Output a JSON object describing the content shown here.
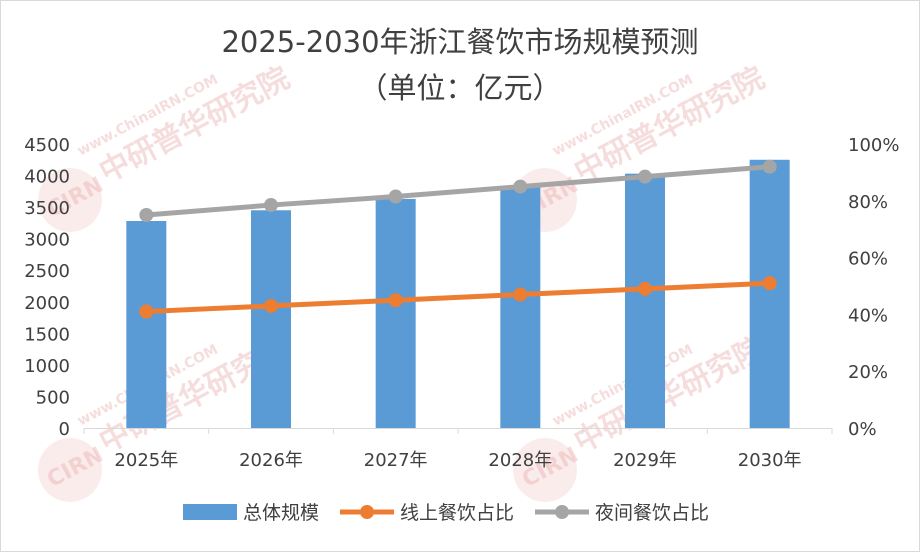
{
  "chart_data": {
    "type": "bar+line",
    "title_line1": "2025-2030年浙江餐饮市场规模预测",
    "title_line2": "（单位：亿元）",
    "categories": [
      "2025年",
      "2026年",
      "2027年",
      "2028年",
      "2029年",
      "2030年"
    ],
    "bar_series": {
      "name": "总体规模",
      "color": "#5b9bd5",
      "values": [
        3280,
        3450,
        3630,
        3830,
        4030,
        4250
      ]
    },
    "line_series": [
      {
        "name": "线上餐饮占比",
        "color": "#ed7d31",
        "values": [
          41,
          43,
          45,
          47,
          49,
          51
        ]
      },
      {
        "name": "夜间餐饮占比",
        "color": "#a5a5a5",
        "values": [
          75,
          78.5,
          81.5,
          85,
          88.5,
          92
        ]
      }
    ],
    "y_left": {
      "min": 0,
      "max": 4500,
      "ticks": [
        0,
        500,
        1000,
        1500,
        2000,
        2500,
        3000,
        3500,
        4000,
        4500
      ]
    },
    "y_right": {
      "min": 0,
      "max": 100,
      "ticks": [
        "0%",
        "20%",
        "40%",
        "60%",
        "80%",
        "100%"
      ]
    },
    "legend_position": "bottom",
    "grid": false
  },
  "watermark": {
    "url_text": "www.ChinaIRN.COM",
    "brand_text": "中研普华研究院",
    "logo_text": "CIRN"
  }
}
